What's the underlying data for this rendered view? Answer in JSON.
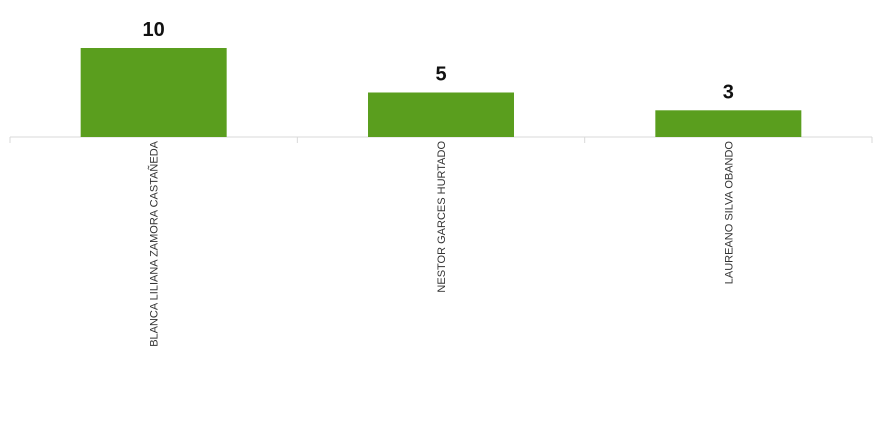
{
  "colors": {
    "bar": "#5a9e1e",
    "axis": "#d9d9d9"
  },
  "chart_data": {
    "type": "bar",
    "categories": [
      "BLANCA LILIANA ZAMORA CASTAÑEDA",
      "NESTOR GARCES HURTADO",
      "LAUREANO SILVA OBANDO"
    ],
    "values": [
      10,
      5,
      3
    ],
    "data_labels": [
      "10",
      "5",
      "3"
    ],
    "ylim": [
      0,
      10
    ],
    "grid": false,
    "legend": "none"
  }
}
